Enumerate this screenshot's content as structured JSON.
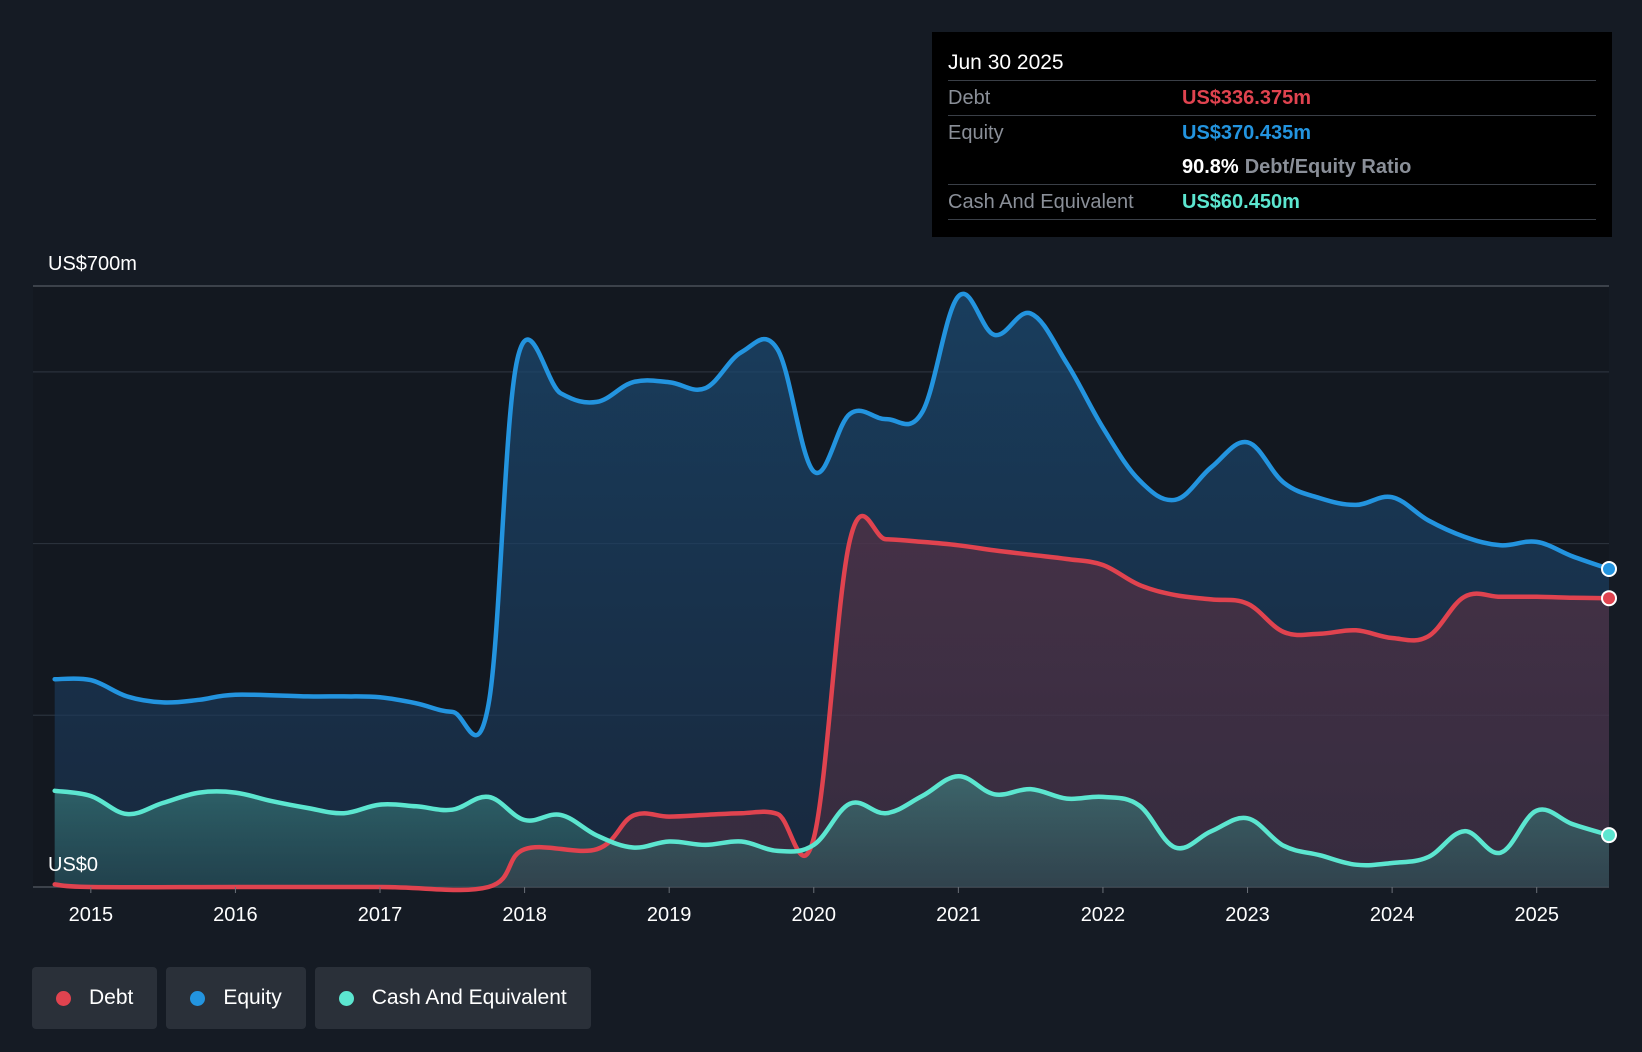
{
  "tooltip": {
    "date": "Jun 30 2025",
    "debt_label": "Debt",
    "debt_value": "US$336.375m",
    "equity_label": "Equity",
    "equity_value": "US$370.435m",
    "ratio_value": "90.8%",
    "ratio_label": "Debt/Equity Ratio",
    "cash_label": "Cash And Equivalent",
    "cash_value": "US$60.450m"
  },
  "legend": {
    "debt": "Debt",
    "equity": "Equity",
    "cash": "Cash And Equivalent"
  },
  "colors": {
    "debt": "#e0434f",
    "equity": "#2394df",
    "cash": "#5ce6d0",
    "background": "#151b24",
    "plot_background": "#131820"
  },
  "chart_data": {
    "type": "area",
    "title": "",
    "xlabel": "",
    "ylabel": "",
    "y_top_label": "US$700m",
    "y_bottom_label": "US$0",
    "ylim": [
      0,
      700
    ],
    "xlim": [
      2014.6,
      2025.5
    ],
    "gridlines": [
      0,
      200,
      400,
      600,
      700
    ],
    "x_ticks": [
      2015,
      2016,
      2017,
      2018,
      2019,
      2020,
      2021,
      2022,
      2023,
      2024,
      2025
    ],
    "x_tick_labels": [
      "2015",
      "2016",
      "2017",
      "2018",
      "2019",
      "2020",
      "2021",
      "2022",
      "2023",
      "2024",
      "2025"
    ],
    "series": [
      {
        "name": "Equity",
        "key": "equity",
        "points": [
          [
            2014.75,
            242
          ],
          [
            2015.0,
            241
          ],
          [
            2015.25,
            222
          ],
          [
            2015.5,
            215
          ],
          [
            2015.75,
            218
          ],
          [
            2016.0,
            224
          ],
          [
            2016.5,
            222
          ],
          [
            2016.75,
            222
          ],
          [
            2017.0,
            221
          ],
          [
            2017.25,
            214
          ],
          [
            2017.5,
            204
          ],
          [
            2017.75,
            212
          ],
          [
            2017.95,
            615
          ],
          [
            2018.25,
            575
          ],
          [
            2018.5,
            565
          ],
          [
            2018.75,
            588
          ],
          [
            2019.0,
            588
          ],
          [
            2019.25,
            581
          ],
          [
            2019.5,
            623
          ],
          [
            2019.75,
            626
          ],
          [
            2020.0,
            484
          ],
          [
            2020.25,
            551
          ],
          [
            2020.5,
            545
          ],
          [
            2020.75,
            553
          ],
          [
            2021.0,
            688
          ],
          [
            2021.25,
            643
          ],
          [
            2021.5,
            668
          ],
          [
            2021.75,
            610
          ],
          [
            2022.0,
            535
          ],
          [
            2022.25,
            474
          ],
          [
            2022.5,
            451
          ],
          [
            2022.75,
            489
          ],
          [
            2023.0,
            518
          ],
          [
            2023.25,
            471
          ],
          [
            2023.5,
            453
          ],
          [
            2023.75,
            445
          ],
          [
            2024.0,
            454
          ],
          [
            2024.25,
            427
          ],
          [
            2024.5,
            408
          ],
          [
            2024.75,
            398
          ],
          [
            2025.0,
            402
          ],
          [
            2025.25,
            385
          ],
          [
            2025.5,
            370.435
          ]
        ]
      },
      {
        "name": "Debt",
        "key": "debt",
        "points": [
          [
            2014.75,
            3
          ],
          [
            2015.0,
            0
          ],
          [
            2016.0,
            0
          ],
          [
            2017.0,
            0
          ],
          [
            2017.75,
            0
          ],
          [
            2018.0,
            44
          ],
          [
            2018.5,
            44
          ],
          [
            2018.75,
            83
          ],
          [
            2019.0,
            82
          ],
          [
            2019.25,
            84
          ],
          [
            2019.5,
            86
          ],
          [
            2019.75,
            85
          ],
          [
            2020.0,
            57
          ],
          [
            2020.25,
            404
          ],
          [
            2020.5,
            405
          ],
          [
            2020.75,
            402
          ],
          [
            2021.0,
            398
          ],
          [
            2021.25,
            392
          ],
          [
            2021.5,
            387
          ],
          [
            2021.75,
            382
          ],
          [
            2022.0,
            375
          ],
          [
            2022.25,
            352
          ],
          [
            2022.5,
            340
          ],
          [
            2022.75,
            335
          ],
          [
            2023.0,
            330
          ],
          [
            2023.25,
            297
          ],
          [
            2023.5,
            295
          ],
          [
            2023.75,
            299
          ],
          [
            2024.0,
            290
          ],
          [
            2024.25,
            292
          ],
          [
            2024.5,
            338
          ],
          [
            2024.75,
            338
          ],
          [
            2025.0,
            338
          ],
          [
            2025.25,
            337
          ],
          [
            2025.5,
            336.375
          ]
        ]
      },
      {
        "name": "Cash And Equivalent",
        "key": "cash",
        "points": [
          [
            2014.75,
            112
          ],
          [
            2015.0,
            106
          ],
          [
            2015.25,
            85
          ],
          [
            2015.5,
            98
          ],
          [
            2015.75,
            110
          ],
          [
            2016.0,
            110
          ],
          [
            2016.25,
            100
          ],
          [
            2016.5,
            92
          ],
          [
            2016.75,
            86
          ],
          [
            2017.0,
            96
          ],
          [
            2017.25,
            94
          ],
          [
            2017.5,
            90
          ],
          [
            2017.75,
            105
          ],
          [
            2018.0,
            78
          ],
          [
            2018.25,
            84
          ],
          [
            2018.5,
            60
          ],
          [
            2018.75,
            46
          ],
          [
            2019.0,
            53
          ],
          [
            2019.25,
            49
          ],
          [
            2019.5,
            53
          ],
          [
            2019.75,
            42
          ],
          [
            2020.0,
            49
          ],
          [
            2020.25,
            97
          ],
          [
            2020.5,
            86
          ],
          [
            2020.75,
            106
          ],
          [
            2021.0,
            129
          ],
          [
            2021.25,
            108
          ],
          [
            2021.5,
            114
          ],
          [
            2021.75,
            103
          ],
          [
            2022.0,
            105
          ],
          [
            2022.25,
            95
          ],
          [
            2022.5,
            46
          ],
          [
            2022.75,
            65
          ],
          [
            2023.0,
            80
          ],
          [
            2023.25,
            48
          ],
          [
            2023.5,
            37
          ],
          [
            2023.75,
            26
          ],
          [
            2024.0,
            28
          ],
          [
            2024.25,
            35
          ],
          [
            2024.5,
            65
          ],
          [
            2024.75,
            40
          ],
          [
            2025.0,
            89
          ],
          [
            2025.25,
            73
          ],
          [
            2025.5,
            60.45
          ]
        ]
      }
    ]
  }
}
